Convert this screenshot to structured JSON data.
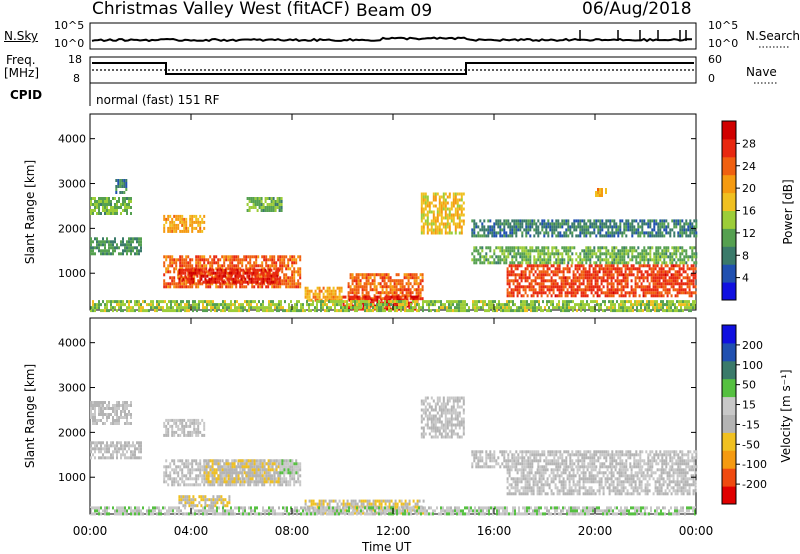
{
  "header": {
    "station": "Christmas Valley West (fitACF)",
    "beam": "Beam 09",
    "date": "06/Aug/2018"
  },
  "noise_panel": {
    "left_label": "N.Sky",
    "left_ticks": [
      "10^5",
      "10^0"
    ],
    "right_ticks": [
      "10^5",
      "10^0"
    ],
    "right_label": "N.Search"
  },
  "freq_panel": {
    "left_label_line1": "Freq.",
    "left_label_line2": "[MHz]",
    "left_ticks": [
      "18",
      "8"
    ],
    "right_ticks": [
      "60",
      "0"
    ],
    "right_label": "Nave"
  },
  "cpid": {
    "label": "CPID",
    "value": "normal (fast) 151 RF"
  },
  "colors": {
    "power_scale": [
      "#1010e0",
      "#2050b0",
      "#3a7a6a",
      "#55a050",
      "#9ccd38",
      "#f0c020",
      "#f59a10",
      "#f06010",
      "#e82810",
      "#d00000"
    ],
    "velocity_scale": [
      "#e00000",
      "#f04a10",
      "#f59a10",
      "#f0c020",
      "#b4b4b4",
      "#c8c8c8",
      "#55c040",
      "#3a7a6a",
      "#2050b0",
      "#1010e0"
    ]
  },
  "chart_data": [
    {
      "type": "heatmap",
      "name": "power",
      "ylabel": "Slant Range [km]",
      "yticks": [
        "4000",
        "3000",
        "2000",
        "1000"
      ],
      "ylim": [
        180,
        4550
      ],
      "xlim": [
        0,
        24
      ],
      "colorbar": {
        "label": "Power [dB]",
        "ticks": [
          "28",
          "24",
          "20",
          "16",
          "12",
          "8",
          "4"
        ],
        "range": [
          0,
          32
        ]
      },
      "echo_regions": [
        {
          "t0": 0.0,
          "t1": 1.6,
          "r0": 2300,
          "r1": 2700,
          "level": 12
        },
        {
          "t0": 0.0,
          "t1": 2.0,
          "r0": 1400,
          "r1": 1800,
          "level": 10
        },
        {
          "t0": 1.0,
          "t1": 1.4,
          "r0": 2800,
          "r1": 3100,
          "level": 8
        },
        {
          "t0": 2.9,
          "t1": 4.5,
          "r0": 1900,
          "r1": 2300,
          "level": 20
        },
        {
          "t0": 2.9,
          "t1": 8.3,
          "r0": 700,
          "r1": 1400,
          "level": 24
        },
        {
          "t0": 3.5,
          "t1": 7.5,
          "r0": 800,
          "r1": 1100,
          "level": 28
        },
        {
          "t0": 6.2,
          "t1": 7.6,
          "r0": 2400,
          "r1": 2700,
          "level": 12
        },
        {
          "t0": 8.5,
          "t1": 10.0,
          "r0": 400,
          "r1": 700,
          "level": 20
        },
        {
          "t0": 10.2,
          "t1": 13.2,
          "r0": 400,
          "r1": 1000,
          "level": 24
        },
        {
          "t0": 10.0,
          "t1": 13.0,
          "r0": 200,
          "r1": 500,
          "level": 28
        },
        {
          "t0": 13.1,
          "t1": 14.8,
          "r0": 1900,
          "r1": 2800,
          "level": 18
        },
        {
          "t0": 15.1,
          "t1": 24.0,
          "r0": 1800,
          "r1": 2200,
          "level": 8
        },
        {
          "t0": 15.1,
          "t1": 24.0,
          "r0": 1200,
          "r1": 1600,
          "level": 12
        },
        {
          "t0": 16.5,
          "t1": 24.0,
          "r0": 500,
          "r1": 1200,
          "level": 26
        },
        {
          "t0": 20.0,
          "t1": 20.4,
          "r0": 2700,
          "r1": 2900,
          "level": 20
        },
        {
          "t0": 0.0,
          "t1": 24.0,
          "r0": 180,
          "r1": 400,
          "level": 14
        }
      ]
    },
    {
      "type": "heatmap",
      "name": "velocity",
      "ylabel": "Slant Range [km]",
      "xlabel": "Time UT",
      "yticks": [
        "4000",
        "3000",
        "2000",
        "1000"
      ],
      "ylim": [
        180,
        4550
      ],
      "xlim": [
        0,
        24
      ],
      "xticks": [
        "00:00",
        "04:00",
        "08:00",
        "12:00",
        "16:00",
        "20:00",
        "00:00"
      ],
      "colorbar": {
        "label": "Velocity [m s⁻¹]",
        "ticks": [
          "200",
          "100",
          "50",
          "15",
          "-15",
          "-50",
          "-100",
          "-200"
        ],
        "range": [
          -250,
          250
        ]
      },
      "echo_regions": [
        {
          "t0": 0.0,
          "t1": 1.6,
          "r0": 2200,
          "r1": 2700,
          "level": 0
        },
        {
          "t0": 0.0,
          "t1": 2.0,
          "r0": 1400,
          "r1": 1800,
          "level": 0
        },
        {
          "t0": 2.9,
          "t1": 4.5,
          "r0": 1900,
          "r1": 2300,
          "level": 0
        },
        {
          "t0": 2.9,
          "t1": 8.3,
          "r0": 800,
          "r1": 1400,
          "level": 0
        },
        {
          "t0": 4.5,
          "t1": 7.5,
          "r0": 900,
          "r1": 1400,
          "level": -40
        },
        {
          "t0": 3.5,
          "t1": 5.5,
          "r0": 350,
          "r1": 600,
          "level": -50
        },
        {
          "t0": 7.5,
          "t1": 8.2,
          "r0": 1100,
          "r1": 1400,
          "level": 40
        },
        {
          "t0": 8.5,
          "t1": 13.2,
          "r0": 200,
          "r1": 500,
          "level": -40
        },
        {
          "t0": 13.1,
          "t1": 14.8,
          "r0": 1900,
          "r1": 2800,
          "level": 0
        },
        {
          "t0": 15.1,
          "t1": 24.0,
          "r0": 1200,
          "r1": 1600,
          "level": 0
        },
        {
          "t0": 16.5,
          "t1": 24.0,
          "r0": 600,
          "r1": 1200,
          "level": 0
        },
        {
          "t0": 0.0,
          "t1": 24.0,
          "r0": 180,
          "r1": 350,
          "level": 30
        }
      ]
    }
  ]
}
